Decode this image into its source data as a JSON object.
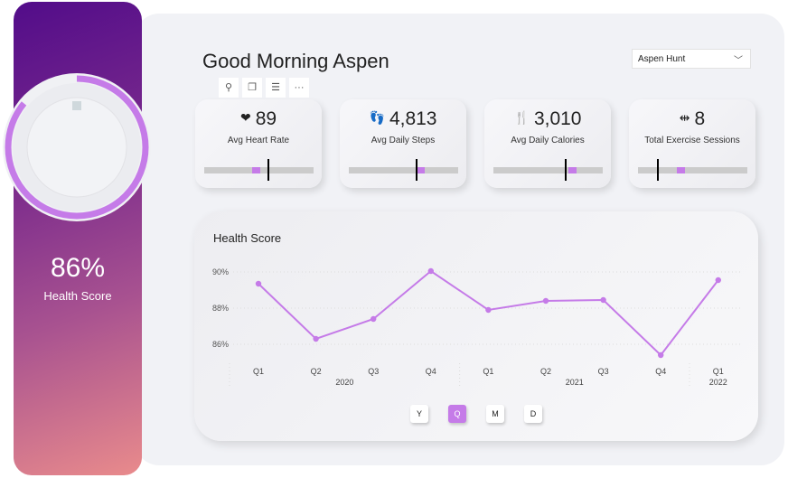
{
  "health": {
    "score": "86%",
    "label": "Health Score",
    "fraction": 0.86
  },
  "header": {
    "greeting": "Good Morning Aspen",
    "user_select": "Aspen Hunt"
  },
  "toolbar": [
    "pin-icon",
    "copy-icon",
    "filter-icon",
    "more-icon"
  ],
  "kpis": [
    {
      "icon": "heart-icon",
      "glyph": "❤",
      "value": "89",
      "label": "Avg Heart Rate",
      "fill_pos": 0.47,
      "marker": 0.58
    },
    {
      "icon": "footsteps-icon",
      "glyph": "👣",
      "value": "4,813",
      "label": "Avg Daily Steps",
      "fill_pos": 0.65,
      "marker": 0.61
    },
    {
      "icon": "fork-knife-icon",
      "glyph": "🍴",
      "value": "3,010",
      "label": "Avg Daily Calories",
      "fill_pos": 0.72,
      "marker": 0.65
    },
    {
      "icon": "dumbbell-icon",
      "glyph": "⇹",
      "value": "8",
      "label": "Total Exercise Sessions",
      "fill_pos": 0.39,
      "marker": 0.17
    }
  ],
  "accent": "#c57be8",
  "chart_data": {
    "type": "line",
    "title": "Health Score",
    "categories": [
      "Q1",
      "Q2",
      "Q3",
      "Q4",
      "Q1",
      "Q2",
      "Q3",
      "Q4",
      "Q1"
    ],
    "years": [
      {
        "label": "2020",
        "span": 4
      },
      {
        "label": "2021",
        "span": 4
      },
      {
        "label": "2022",
        "span": 1
      }
    ],
    "values": [
      89.35,
      86.3,
      87.4,
      90.05,
      87.9,
      88.4,
      88.45,
      85.4,
      89.55
    ],
    "yticks": [
      "86%",
      "88%",
      "90%"
    ],
    "ytick_values": [
      86,
      88,
      90
    ],
    "ylim": [
      84.5,
      90.5
    ],
    "grid": true
  },
  "granularity": {
    "options": [
      "Y",
      "Q",
      "M",
      "D"
    ],
    "selected": "Q"
  }
}
